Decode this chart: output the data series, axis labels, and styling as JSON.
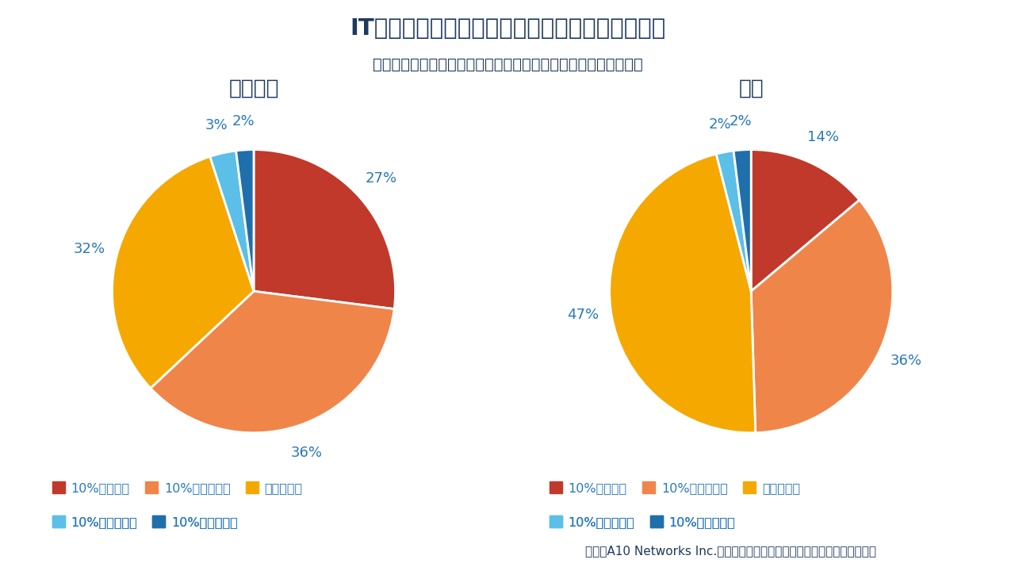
{
  "title": "IT管理者に聞くセキュリティ部門への投資の実態",
  "subtitle": "次年度のセキュリティ予算がどれくらい変わると予想しますか？",
  "source": "出典：A10 Networks Inc.「アプリケーションインテリジェンスレポート」",
  "chart1_title": "世界全体",
  "chart2_title": "日本",
  "world_values": [
    27,
    36,
    32,
    3,
    2
  ],
  "japan_values": [
    14,
    36,
    47,
    2,
    2
  ],
  "colors": [
    "#c0392b",
    "#f0854a",
    "#f5a800",
    "#5bbfe8",
    "#1f6fad"
  ],
  "legend_labels": [
    "10%以上増加",
    "10%未満の増加",
    "変わらない",
    "10%未満の減少",
    "10%以上の減少"
  ],
  "title_color": "#1e3a5f",
  "label_color": "#2878be",
  "bg_color": "#ffffff"
}
